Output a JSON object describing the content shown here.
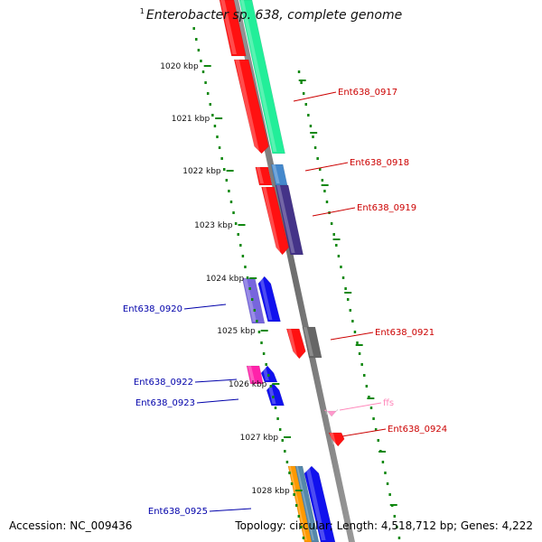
{
  "title": {
    "superscript": "1",
    "text": "Enterobacter sp. 638, complete genome"
  },
  "footer": {
    "accession_label": "Accession: ",
    "accession": "NC_009436",
    "topology_label": "Topology: ",
    "topology": "circular",
    "length_label": "; Length: ",
    "length": "4,518,712 bp",
    "genes_label": "; Genes: ",
    "genes": "4,222"
  },
  "ticks": [
    "1020 kbp",
    "1021 kbp",
    "1022 kbp",
    "1023 kbp",
    "1024 kbp",
    "1025 kbp",
    "1026 kbp",
    "1027 kbp",
    "1028 kbp"
  ],
  "genes_labels": {
    "forward_color": "#cc0000",
    "reverse_color": "#0000aa",
    "rna_color": "#ff88bb",
    "items": [
      {
        "name": "Ent638_0917",
        "side": "right"
      },
      {
        "name": "Ent638_0918",
        "side": "right"
      },
      {
        "name": "Ent638_0919",
        "side": "right"
      },
      {
        "name": "Ent638_0920",
        "side": "left"
      },
      {
        "name": "Ent638_0921",
        "side": "right"
      },
      {
        "name": "Ent638_0922",
        "side": "left"
      },
      {
        "name": "Ent638_0923",
        "side": "left"
      },
      {
        "name": "ffs",
        "side": "right"
      },
      {
        "name": "Ent638_0924",
        "side": "right"
      },
      {
        "name": "Ent638_0925",
        "side": "left"
      }
    ]
  }
}
